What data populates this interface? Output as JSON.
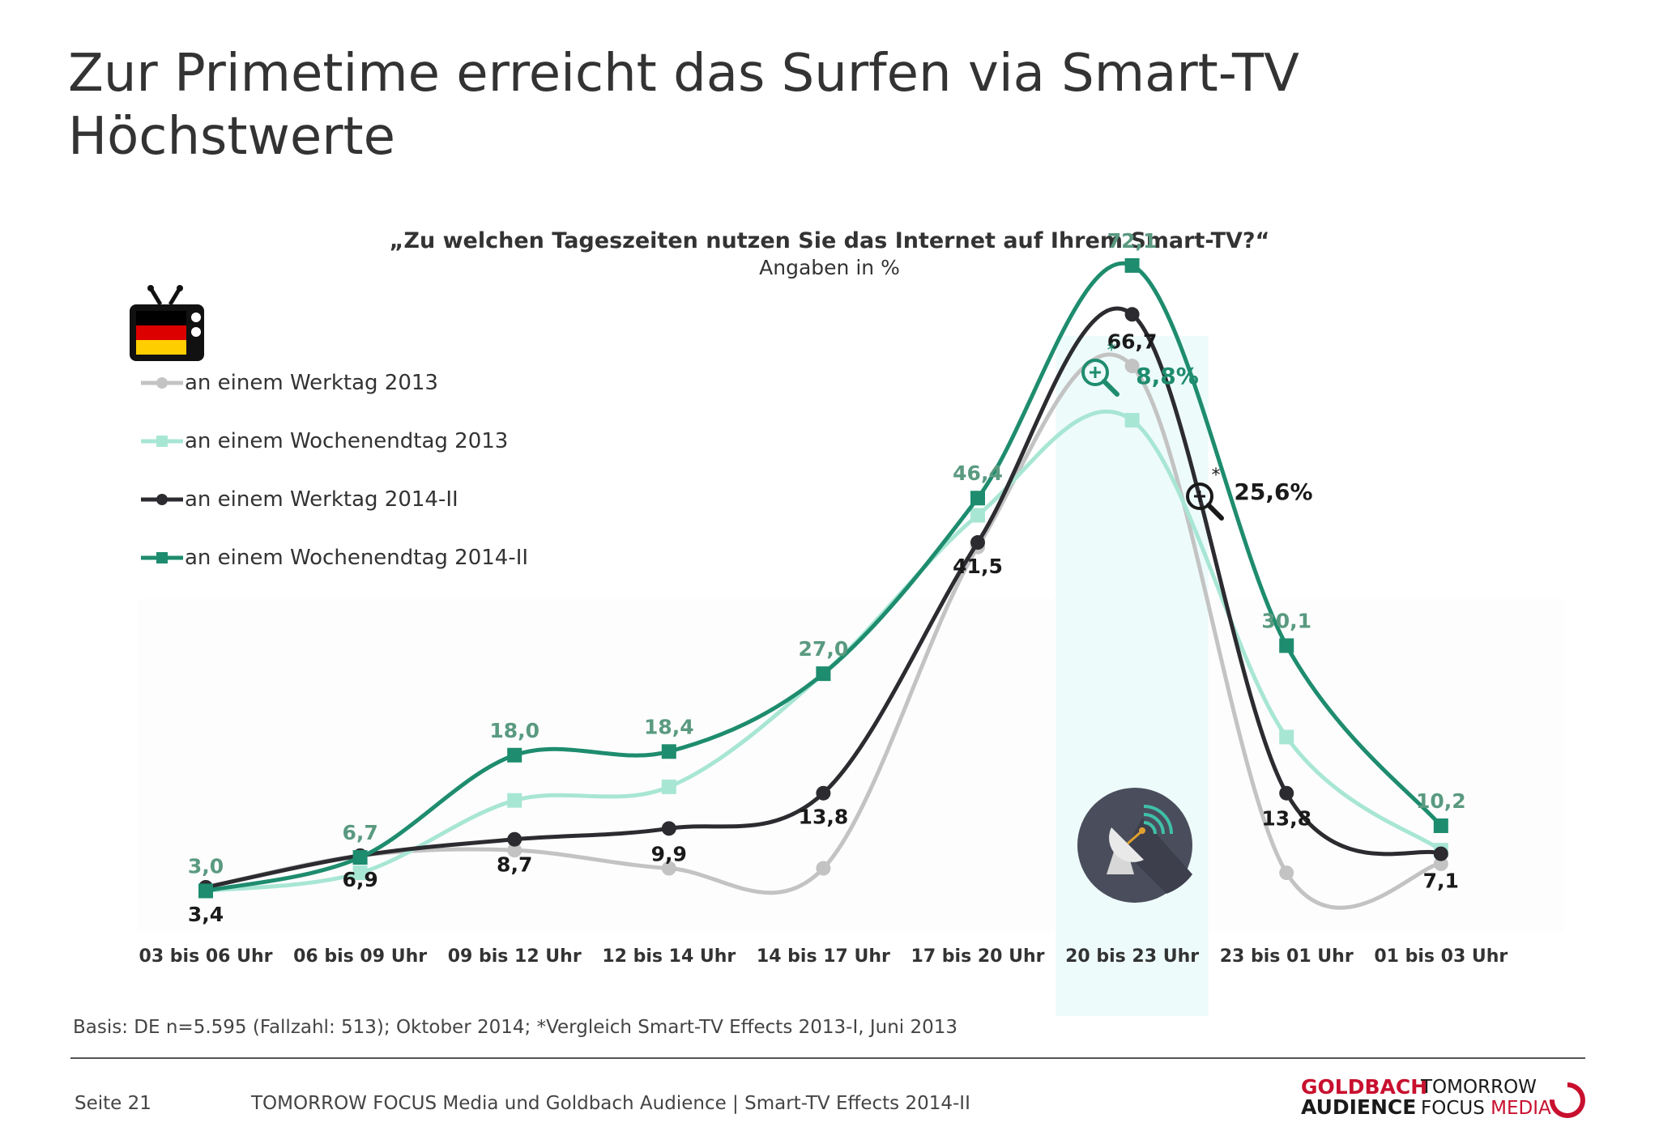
{
  "page": {
    "title_lines": [
      "Zur Primetime erreicht das Surfen via Smart-TV",
      "Höchstwerte"
    ],
    "footnote": "Basis: DE n=5.595 (Fallzahl: 513); Oktober 2014; *Vergleich Smart-TV Effects 2013-I, Juni 2013",
    "page_number": "Seite 21",
    "source": "TOMORROW FOCUS Media und Goldbach Audience | Smart-TV Effects 2014-II",
    "logo_goldbach": [
      "GOLDBACH",
      "AUDIENCE"
    ],
    "logo_tomorrow": [
      "TOMORROW",
      "FOCUS",
      "MEDIA"
    ]
  },
  "chart_data": {
    "type": "line",
    "title": "„Zu welchen Tageszeiten nutzen Sie das Internet auf Ihrem Smart-TV?“",
    "subtitle": "Angaben in %",
    "categories": [
      "03 bis 06 Uhr",
      "06 bis 09 Uhr",
      "09 bis 12 Uhr",
      "12 bis 14 Uhr",
      "14 bis 17 Uhr",
      "17 bis 20 Uhr",
      "20 bis 23 Uhr",
      "23 bis 01 Uhr",
      "01 bis 03 Uhr"
    ],
    "ylim": [
      0,
      80
    ],
    "legend_position": "top-left",
    "grid": false,
    "highlight_category": "20 bis 23 Uhr",
    "series": [
      {
        "name": "an einem Werktag 2013",
        "color": "#c3c3c3",
        "marker": "circle",
        "values": [
          3.4,
          6.9,
          7.5,
          5.5,
          5.5,
          41.0,
          61.0,
          5.0,
          6.0
        ],
        "labels": [
          null,
          null,
          null,
          null,
          null,
          null,
          null,
          null,
          null
        ]
      },
      {
        "name": "an einem Wochenendtag 2013",
        "color": "#a8e6d4",
        "marker": "square",
        "values": [
          3.0,
          5.0,
          13.0,
          14.5,
          27.0,
          44.5,
          55.0,
          20.0,
          7.5
        ],
        "labels": [
          null,
          null,
          null,
          null,
          null,
          null,
          null,
          null,
          null
        ]
      },
      {
        "name": "an einem Werktag 2014-II",
        "color": "#2b2b30",
        "marker": "circle",
        "values": [
          3.4,
          6.9,
          8.7,
          9.9,
          13.8,
          41.5,
          66.7,
          13.8,
          7.1
        ],
        "labels": [
          "3,4",
          "6,9",
          "8,7",
          "9,9",
          "13,8",
          "41,5",
          "66,7",
          "13,8",
          "7,1"
        ]
      },
      {
        "name": "an einem Wochenendtag 2014-II",
        "color": "#1e8c6e",
        "marker": "square",
        "values": [
          3.0,
          6.7,
          18.0,
          18.4,
          27.0,
          46.4,
          72.1,
          30.1,
          10.2
        ],
        "labels": [
          "3,0",
          "6,7",
          "18,0",
          "18,4",
          "27,0",
          "46,4",
          "72,1",
          "30,1",
          "10,2"
        ]
      }
    ],
    "annotations": [
      {
        "text": "8,8%",
        "star": "*",
        "color": "#1e8c6e",
        "icon": "zoom-in-icon"
      },
      {
        "text": "25,6%",
        "star": "*",
        "color": "#1a1a1a",
        "icon": "zoom-in-icon"
      }
    ]
  }
}
